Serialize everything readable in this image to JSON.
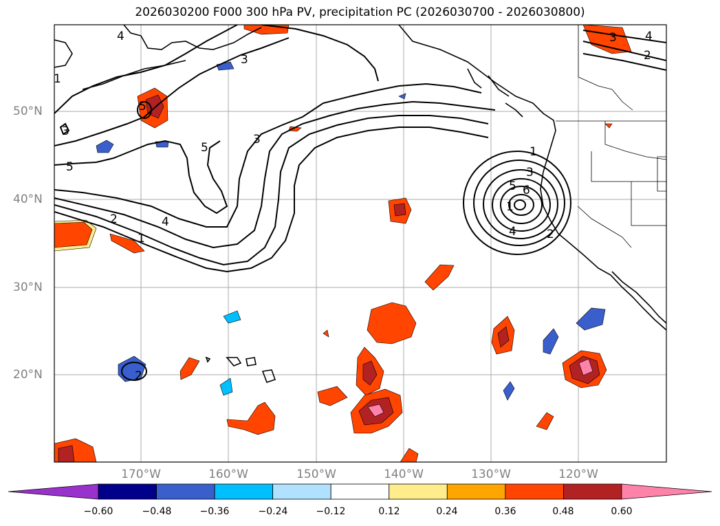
{
  "title": "2026030200 F000 300 hPa PV, precipitation PC (2026030700 - 2026030800)",
  "lat_labels": [
    "50°N",
    "40°N",
    "30°N",
    "20°N"
  ],
  "lon_labels": [
    "170°W",
    "160°W",
    "150°W",
    "140°W",
    "130°W",
    "120°W"
  ],
  "colorbar": {
    "ticks": [
      "−0.60",
      "−0.48",
      "−0.36",
      "−0.24",
      "−0.12",
      "0.12",
      "0.24",
      "0.36",
      "0.48",
      "0.60"
    ],
    "colors": [
      "#9932cc",
      "#00008b",
      "#3a5fcd",
      "#00bfff",
      "#b0e2ff",
      "#ffffff",
      "#ffec8b",
      "#ffa500",
      "#ff4500",
      "#b22222",
      "#ff82ab"
    ]
  },
  "contour_labels": [
    "4",
    "3",
    "2",
    "1",
    "5",
    "3",
    "4",
    "2",
    "1",
    "5",
    "5",
    "3",
    "1",
    "3",
    "5",
    "6",
    "4",
    "2",
    "1",
    "3",
    "4",
    "2"
  ]
}
